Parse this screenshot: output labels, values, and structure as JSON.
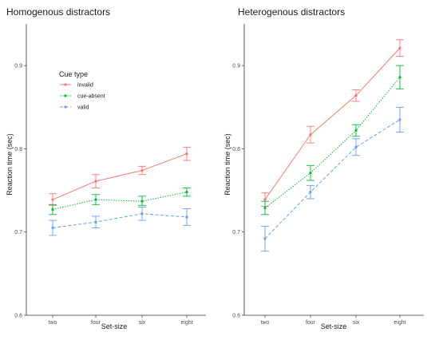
{
  "colors": {
    "invalid": "#F8766D",
    "cue_absent": "#00BA38",
    "valid": "#619CFF",
    "axis": "#333333",
    "tick": "#4d4d4d"
  },
  "legend": {
    "title": "Cue type",
    "items": [
      {
        "label": "invalid",
        "series": "invalid",
        "dash": "solid"
      },
      {
        "label": "cue-absent",
        "series": "cue_absent",
        "dash": "dotted"
      },
      {
        "label": "valid",
        "series": "valid",
        "dash": "dashed"
      }
    ]
  },
  "chart_data": [
    {
      "type": "line",
      "title": "Homogenous distractors",
      "xlabel": "Set-size",
      "ylabel": "Reaction time (sec)",
      "categories": [
        "two",
        "four",
        "six",
        "eight"
      ],
      "ylim": [
        0.6,
        0.95
      ],
      "yticks": [
        0.6,
        0.7,
        0.8,
        0.9
      ],
      "ytick_labels": [
        "0.6",
        "0.7",
        "0.8",
        "0.9"
      ],
      "grid": false,
      "legend_position": "upper-left inside panel",
      "series": [
        {
          "name": "invalid",
          "key": "invalid",
          "line": "solid",
          "values": [
            0.739,
            0.761,
            0.774,
            0.794
          ],
          "err_low": [
            0.732,
            0.753,
            0.769,
            0.786
          ],
          "err_high": [
            0.746,
            0.769,
            0.779,
            0.802
          ]
        },
        {
          "name": "cue-absent",
          "key": "cue_absent",
          "line": "dotted",
          "values": [
            0.727,
            0.739,
            0.737,
            0.748
          ],
          "err_low": [
            0.721,
            0.733,
            0.732,
            0.743
          ],
          "err_high": [
            0.733,
            0.745,
            0.743,
            0.753
          ]
        },
        {
          "name": "valid",
          "key": "valid",
          "line": "dashed",
          "values": [
            0.705,
            0.712,
            0.722,
            0.718
          ],
          "err_low": [
            0.696,
            0.705,
            0.714,
            0.708
          ],
          "err_high": [
            0.714,
            0.719,
            0.73,
            0.728
          ]
        }
      ]
    },
    {
      "type": "line",
      "title": "Heterogenous distractors",
      "xlabel": "Set-size",
      "ylabel": "Reaction time (sec)",
      "categories": [
        "two",
        "four",
        "six",
        "eight"
      ],
      "ylim": [
        0.6,
        0.95
      ],
      "yticks": [
        0.6,
        0.7,
        0.8,
        0.9
      ],
      "ytick_labels": [
        "0.6",
        "0.7",
        "0.8",
        "0.9"
      ],
      "grid": false,
      "series": [
        {
          "name": "invalid",
          "key": "invalid",
          "line": "solid",
          "values": [
            0.739,
            0.817,
            0.864,
            0.921
          ],
          "err_low": [
            0.731,
            0.807,
            0.857,
            0.911
          ],
          "err_high": [
            0.747,
            0.827,
            0.871,
            0.931
          ]
        },
        {
          "name": "cue-absent",
          "key": "cue_absent",
          "line": "dotted",
          "values": [
            0.729,
            0.771,
            0.822,
            0.886
          ],
          "err_low": [
            0.721,
            0.762,
            0.815,
            0.872
          ],
          "err_high": [
            0.737,
            0.78,
            0.829,
            0.9
          ]
        },
        {
          "name": "valid",
          "key": "valid",
          "line": "dashed",
          "values": [
            0.692,
            0.748,
            0.802,
            0.835
          ],
          "err_low": [
            0.677,
            0.74,
            0.792,
            0.82
          ],
          "err_high": [
            0.707,
            0.756,
            0.812,
            0.85
          ]
        }
      ]
    }
  ]
}
